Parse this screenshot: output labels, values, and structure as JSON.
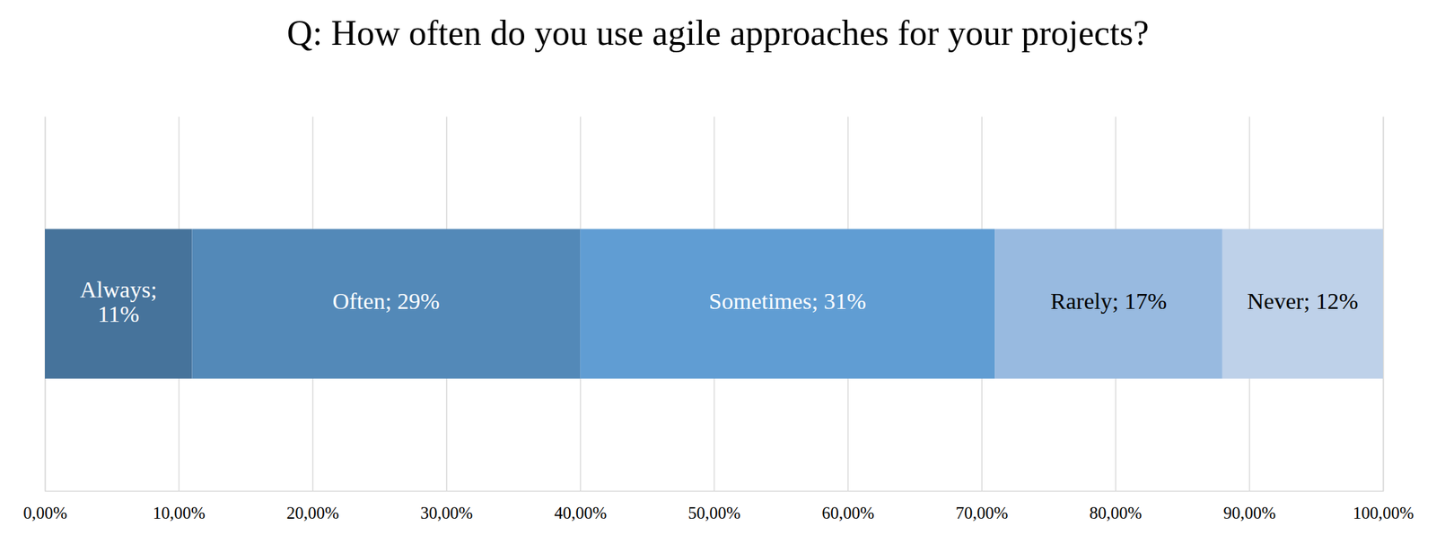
{
  "chart_data": {
    "type": "bar",
    "orientation": "horizontal",
    "stacked": true,
    "data_labels": true,
    "title": "Q: How often do you use agile approaches for your projects?",
    "categories": [
      null
    ],
    "series": [
      {
        "name": "Always",
        "color": "#46739b",
        "values": [
          11
        ],
        "value_labels": [
          "Always; 11%"
        ]
      },
      {
        "name": "Often",
        "color": "#5389b8",
        "values": [
          29
        ],
        "value_labels": [
          "Often; 29%"
        ]
      },
      {
        "name": "Sometimes",
        "color": "#609dd3",
        "values": [
          31
        ],
        "value_labels": [
          "Sometimes; 31%"
        ]
      },
      {
        "name": "Rarely",
        "color": "#98bae0",
        "values": [
          17
        ],
        "value_labels": [
          "Rarely; 17%"
        ]
      },
      {
        "name": "Never",
        "color": "#bed1e9",
        "values": [
          12
        ],
        "value_labels": [
          "Never; 12%"
        ]
      }
    ],
    "xlim": [
      0,
      100
    ],
    "xticks": [
      {
        "value": 0,
        "label": "0,00%"
      },
      {
        "value": 10,
        "label": "10,00%"
      },
      {
        "value": 20,
        "label": "20,00%"
      },
      {
        "value": 30,
        "label": "30,00%"
      },
      {
        "value": 40,
        "label": "40,00%"
      },
      {
        "value": 50,
        "label": "50,00%"
      },
      {
        "value": 60,
        "label": "60,00%"
      },
      {
        "value": 70,
        "label": "70,00%"
      },
      {
        "value": 80,
        "label": "80,00%"
      },
      {
        "value": 90,
        "label": "90,00%"
      },
      {
        "value": 100,
        "label": "100,00%"
      }
    ],
    "grid": true,
    "tick_labels": "x"
  }
}
